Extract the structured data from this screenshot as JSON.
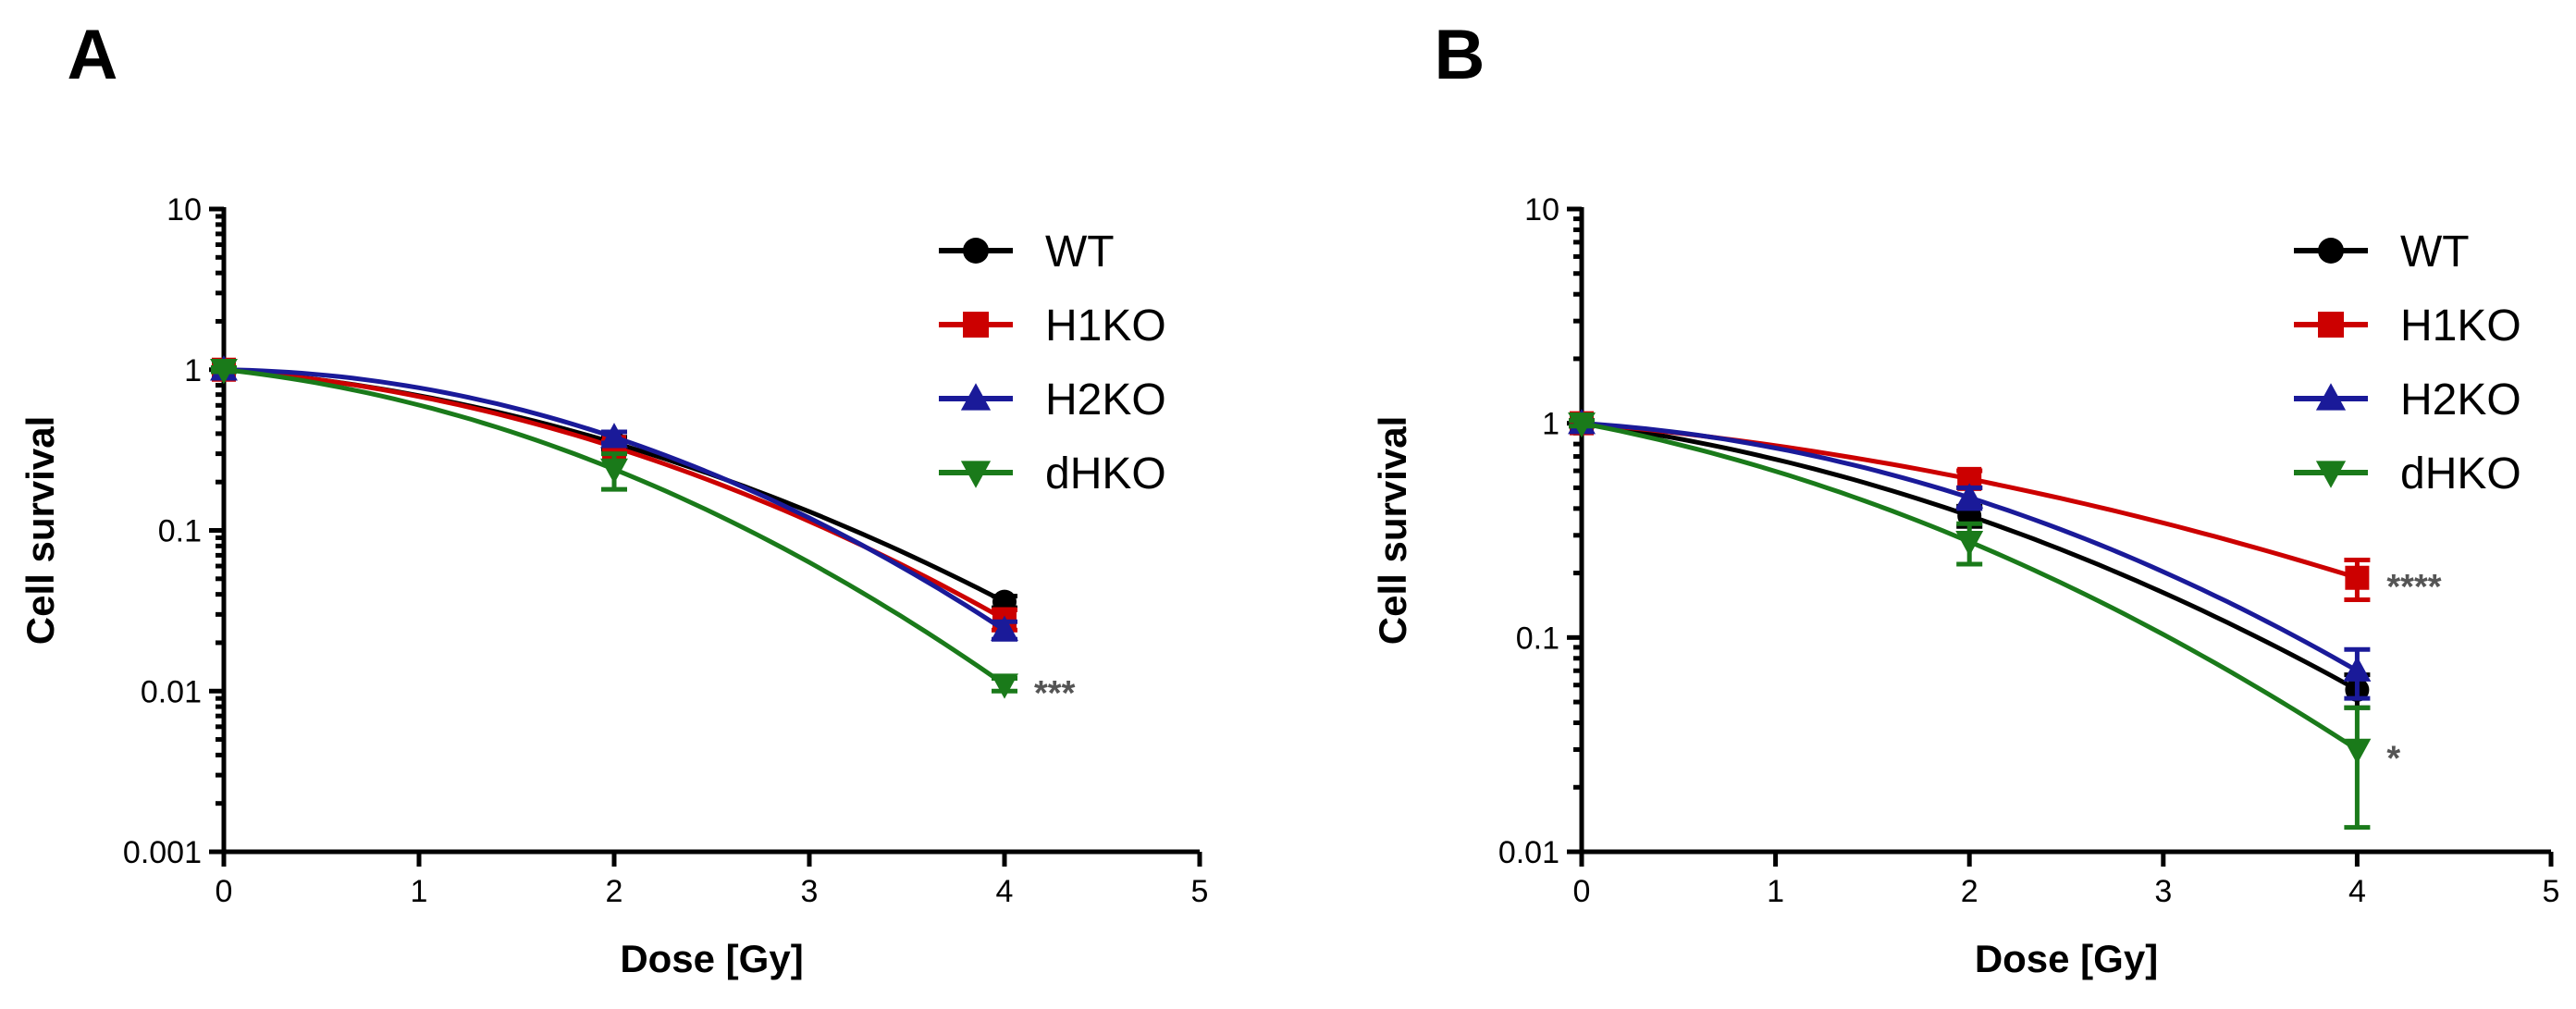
{
  "chart_data": [
    {
      "panel": "A",
      "type": "line",
      "xlabel": "Dose [Gy]",
      "ylabel": "Cell survival",
      "yscale": "log",
      "xlim": [
        0,
        5
      ],
      "ylim": [
        0.001,
        10
      ],
      "x_ticks": [
        0,
        1,
        2,
        3,
        4,
        5
      ],
      "x_tick_labels": [
        "0",
        "1",
        "2",
        "3",
        "4",
        "5"
      ],
      "y_ticks": [
        0.001,
        0.01,
        0.1,
        1,
        10
      ],
      "y_tick_labels": [
        "0.001",
        "0.01",
        "0.1",
        "1",
        "10"
      ],
      "legend": [
        "WT",
        "H1KO",
        "H2KO",
        "dHKO"
      ],
      "series": [
        {
          "name": "WT",
          "color": "#000000",
          "marker": "circle",
          "x": [
            0,
            2,
            4
          ],
          "y": [
            1.0,
            0.35,
            0.036
          ],
          "err": [
            0.03,
            0.03,
            0.003
          ]
        },
        {
          "name": "H1KO",
          "color": "#cc0000",
          "marker": "square",
          "x": [
            0,
            2,
            4
          ],
          "y": [
            1.0,
            0.33,
            0.028
          ],
          "err": [
            0.03,
            0.03,
            0.004
          ]
        },
        {
          "name": "H2KO",
          "color": "#1a1a99",
          "marker": "triangle-up",
          "x": [
            0,
            2,
            4
          ],
          "y": [
            1.0,
            0.38,
            0.024
          ],
          "err": [
            0.03,
            0.03,
            0.003
          ]
        },
        {
          "name": "dHKO",
          "color": "#1a7a1a",
          "marker": "triangle-down",
          "x": [
            0,
            2,
            4
          ],
          "y": [
            1.0,
            0.24,
            0.011
          ],
          "err": [
            0.03,
            0.06,
            0.001
          ]
        }
      ],
      "annotations": [
        {
          "series": "dHKO",
          "text": "***"
        }
      ]
    },
    {
      "panel": "B",
      "type": "line",
      "xlabel": "Dose [Gy]",
      "ylabel": "Cell survival",
      "yscale": "log",
      "xlim": [
        0,
        5
      ],
      "ylim": [
        0.01,
        10
      ],
      "x_ticks": [
        0,
        1,
        2,
        3,
        4,
        5
      ],
      "x_tick_labels": [
        "0",
        "1",
        "2",
        "3",
        "4",
        "5"
      ],
      "y_ticks": [
        0.01,
        0.1,
        1,
        10
      ],
      "y_tick_labels": [
        "0.01",
        "0.1",
        "1",
        "10"
      ],
      "legend": [
        "WT",
        "H1KO",
        "H2KO",
        "dHKO"
      ],
      "series": [
        {
          "name": "WT",
          "color": "#000000",
          "marker": "circle",
          "x": [
            0,
            2,
            4
          ],
          "y": [
            1.0,
            0.37,
            0.057
          ],
          "err": [
            0.03,
            0.04,
            0.01
          ]
        },
        {
          "name": "H1KO",
          "color": "#cc0000",
          "marker": "square",
          "x": [
            0,
            2,
            4
          ],
          "y": [
            1.0,
            0.55,
            0.19
          ],
          "err": [
            0.03,
            0.05,
            0.04
          ]
        },
        {
          "name": "H2KO",
          "color": "#1a1a99",
          "marker": "triangle-up",
          "x": [
            0,
            2,
            4
          ],
          "y": [
            1.0,
            0.45,
            0.07
          ],
          "err": [
            0.03,
            0.05,
            0.018
          ]
        },
        {
          "name": "dHKO",
          "color": "#1a7a1a",
          "marker": "triangle-down",
          "x": [
            0,
            2,
            4
          ],
          "y": [
            1.0,
            0.28,
            0.03
          ],
          "err": [
            0.03,
            0.06,
            0.017
          ]
        }
      ],
      "annotations": [
        {
          "series": "H1KO",
          "text": "****"
        },
        {
          "series": "dHKO",
          "text": "*"
        }
      ]
    }
  ]
}
